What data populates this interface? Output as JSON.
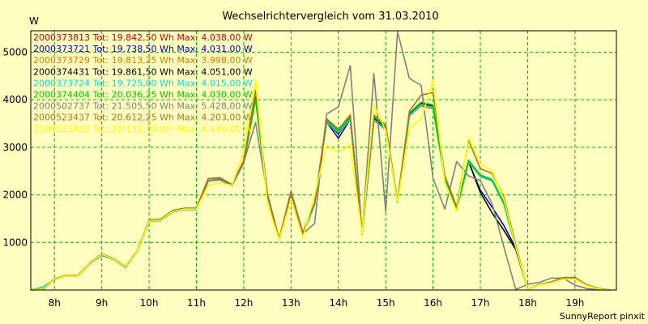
{
  "chart_data": {
    "type": "line",
    "title": "Wechselrichtervergleich vom 31.03.2010",
    "ylabel": "W",
    "xlabel": "",
    "credit": "SunnyReport pinxit",
    "ylim": [
      0,
      5450
    ],
    "xlim": [
      7.5,
      19.875
    ],
    "grid": true,
    "legend_position": "top-left",
    "y_ticks": [
      1000,
      2000,
      3000,
      4000,
      5000
    ],
    "y_tick_labels": [
      "1000",
      "2000",
      "3000",
      "4000",
      "5000"
    ],
    "x_ticks": [
      8,
      9,
      10,
      11,
      12,
      13,
      14,
      15,
      16,
      17,
      18,
      19
    ],
    "x_tick_labels": [
      "8h",
      "9h",
      "10h",
      "11h",
      "12h",
      "13h",
      "14h",
      "15h",
      "16h",
      "17h",
      "18h",
      "19h"
    ],
    "x": [
      7.5,
      7.75,
      8.0,
      8.25,
      8.5,
      8.75,
      9.0,
      9.25,
      9.5,
      9.75,
      10.0,
      10.25,
      10.5,
      10.75,
      11.0,
      11.25,
      11.5,
      11.75,
      12.0,
      12.25,
      12.5,
      12.75,
      13.0,
      13.25,
      13.5,
      13.75,
      14.0,
      14.25,
      14.5,
      14.75,
      15.0,
      15.25,
      15.5,
      15.75,
      16.0,
      16.25,
      16.5,
      16.75,
      17.0,
      17.25,
      17.5,
      17.75,
      18.0,
      18.25,
      18.5,
      18.75,
      19.0,
      19.25,
      19.5,
      19.75
    ],
    "series": [
      {
        "name": "2000373813 Tot: 19.842,50 Wh Max: 4.038,00 W",
        "color": "#d40000",
        "values": [
          0,
          20,
          220,
          300,
          300,
          550,
          750,
          650,
          480,
          820,
          1450,
          1470,
          1650,
          1700,
          1700,
          2300,
          2330,
          2200,
          2680,
          4030,
          2000,
          1050,
          2050,
          1180,
          1810,
          3540,
          3300,
          3610,
          1180,
          3600,
          3400,
          1850,
          3690,
          3920,
          3850,
          2350,
          1700,
          2700,
          2400,
          2300,
          1810,
          900,
          10,
          120,
          160,
          250,
          250,
          100,
          30,
          0
        ]
      },
      {
        "name": "2000373721 Tot: 19.738,50 Wh Max: 4.031,00 W",
        "color": "#0000c8",
        "values": [
          0,
          10,
          220,
          300,
          300,
          550,
          730,
          640,
          470,
          810,
          1440,
          1460,
          1640,
          1690,
          1690,
          2290,
          2320,
          2190,
          2670,
          4020,
          1990,
          1050,
          2040,
          1170,
          1800,
          3530,
          3190,
          3590,
          1170,
          3590,
          3380,
          1840,
          3680,
          3910,
          3840,
          2340,
          1690,
          2690,
          2100,
          1740,
          1350,
          880,
          10,
          110,
          150,
          240,
          240,
          90,
          20,
          0
        ]
      },
      {
        "name": "2000373729 Tot: 19.813,25 Wh Max: 3.998,00 W",
        "color": "#e07800",
        "values": [
          0,
          30,
          230,
          310,
          310,
          560,
          740,
          650,
          480,
          820,
          1440,
          1460,
          1640,
          1690,
          1690,
          2290,
          2310,
          2190,
          2660,
          4000,
          1990,
          1050,
          2030,
          1180,
          1800,
          3520,
          3310,
          3580,
          1170,
          3560,
          3370,
          1840,
          3660,
          3870,
          3810,
          2330,
          1680,
          2680,
          2380,
          2290,
          1800,
          890,
          10,
          110,
          160,
          250,
          250,
          100,
          30,
          0
        ]
      },
      {
        "name": "2000374431 Tot: 19.861,50 Wh Max: 4.051,00 W",
        "color": "#000000",
        "values": [
          0,
          20,
          220,
          300,
          300,
          560,
          750,
          650,
          480,
          820,
          1450,
          1470,
          1650,
          1700,
          1700,
          2300,
          2330,
          2200,
          2680,
          4050,
          2000,
          1050,
          2050,
          1180,
          1810,
          3550,
          3280,
          3620,
          1180,
          3610,
          3410,
          1850,
          3700,
          3930,
          3870,
          2360,
          1700,
          2710,
          2050,
          1620,
          1250,
          850,
          10,
          110,
          160,
          250,
          250,
          100,
          30,
          0
        ]
      },
      {
        "name": "2000373724 Tot: 19.725,00 Wh Max: 4.015,00 W",
        "color": "#00e0e0",
        "values": [
          0,
          60,
          220,
          300,
          300,
          550,
          740,
          640,
          480,
          810,
          1440,
          1460,
          1640,
          1690,
          1690,
          2290,
          2320,
          2190,
          2670,
          4010,
          1990,
          1050,
          2040,
          1170,
          1800,
          3530,
          3310,
          3590,
          1170,
          3580,
          3380,
          1840,
          3670,
          3900,
          3840,
          2340,
          1690,
          2690,
          2390,
          2290,
          1800,
          890,
          10,
          110,
          150,
          240,
          240,
          90,
          20,
          0
        ]
      },
      {
        "name": "2000374404 Tot: 20.036,25 Wh Max: 4.030,00 W",
        "color": "#00c800",
        "values": [
          0,
          30,
          230,
          310,
          310,
          570,
          760,
          660,
          490,
          830,
          1470,
          1490,
          1670,
          1720,
          1720,
          2340,
          2360,
          2220,
          2710,
          4030,
          2020,
          1070,
          2070,
          1200,
          1830,
          3570,
          3340,
          3640,
          1200,
          3640,
          3440,
          1870,
          3720,
          3950,
          3890,
          2370,
          1720,
          2730,
          2420,
          2320,
          1830,
          910,
          10,
          120,
          160,
          260,
          260,
          100,
          30,
          0
        ]
      },
      {
        "name": "2000502737 Tot: 21.505,50 Wh Max: 5.428,00 W",
        "color": "#808080",
        "values": [
          0,
          20,
          220,
          300,
          300,
          560,
          750,
          650,
          480,
          820,
          1450,
          1470,
          1650,
          1700,
          1700,
          2300,
          2330,
          2200,
          2680,
          3520,
          2000,
          1050,
          2050,
          1180,
          1400,
          3700,
          3850,
          4720,
          1180,
          4550,
          1650,
          5430,
          4450,
          4300,
          2350,
          1700,
          2700,
          2400,
          2300,
          1810,
          900,
          10,
          120,
          160,
          250,
          250,
          100,
          30,
          0,
          0
        ]
      },
      {
        "name": "2000523437 Tot: 20.612,25 Wh Max: 4.203,00 W",
        "color": "#b86e28",
        "values": [
          0,
          20,
          230,
          310,
          310,
          570,
          760,
          660,
          490,
          830,
          1470,
          1490,
          1670,
          1720,
          1720,
          2340,
          2360,
          2220,
          2720,
          4200,
          2030,
          1070,
          2080,
          1210,
          1840,
          3600,
          3380,
          3680,
          1210,
          3680,
          3470,
          1880,
          3760,
          4100,
          4150,
          2400,
          1750,
          3150,
          2550,
          2450,
          1950,
          950,
          10,
          120,
          170,
          260,
          260,
          110,
          30,
          0
        ]
      },
      {
        "name": "2000523438 Tot: 20.131,00 Wh Max: 4.436,00 W",
        "color": "#ffff00",
        "values": [
          0,
          20,
          220,
          300,
          300,
          560,
          750,
          650,
          480,
          820,
          1450,
          1470,
          1650,
          1700,
          1700,
          2200,
          2250,
          2200,
          2900,
          4430,
          1800,
          1050,
          1900,
          1100,
          2000,
          3050,
          2900,
          3050,
          1180,
          3900,
          3350,
          1850,
          3400,
          3600,
          4400,
          2250,
          1650,
          3200,
          2650,
          2500,
          1900,
          900,
          10,
          110,
          150,
          230,
          230,
          90,
          20,
          0
        ]
      }
    ]
  }
}
